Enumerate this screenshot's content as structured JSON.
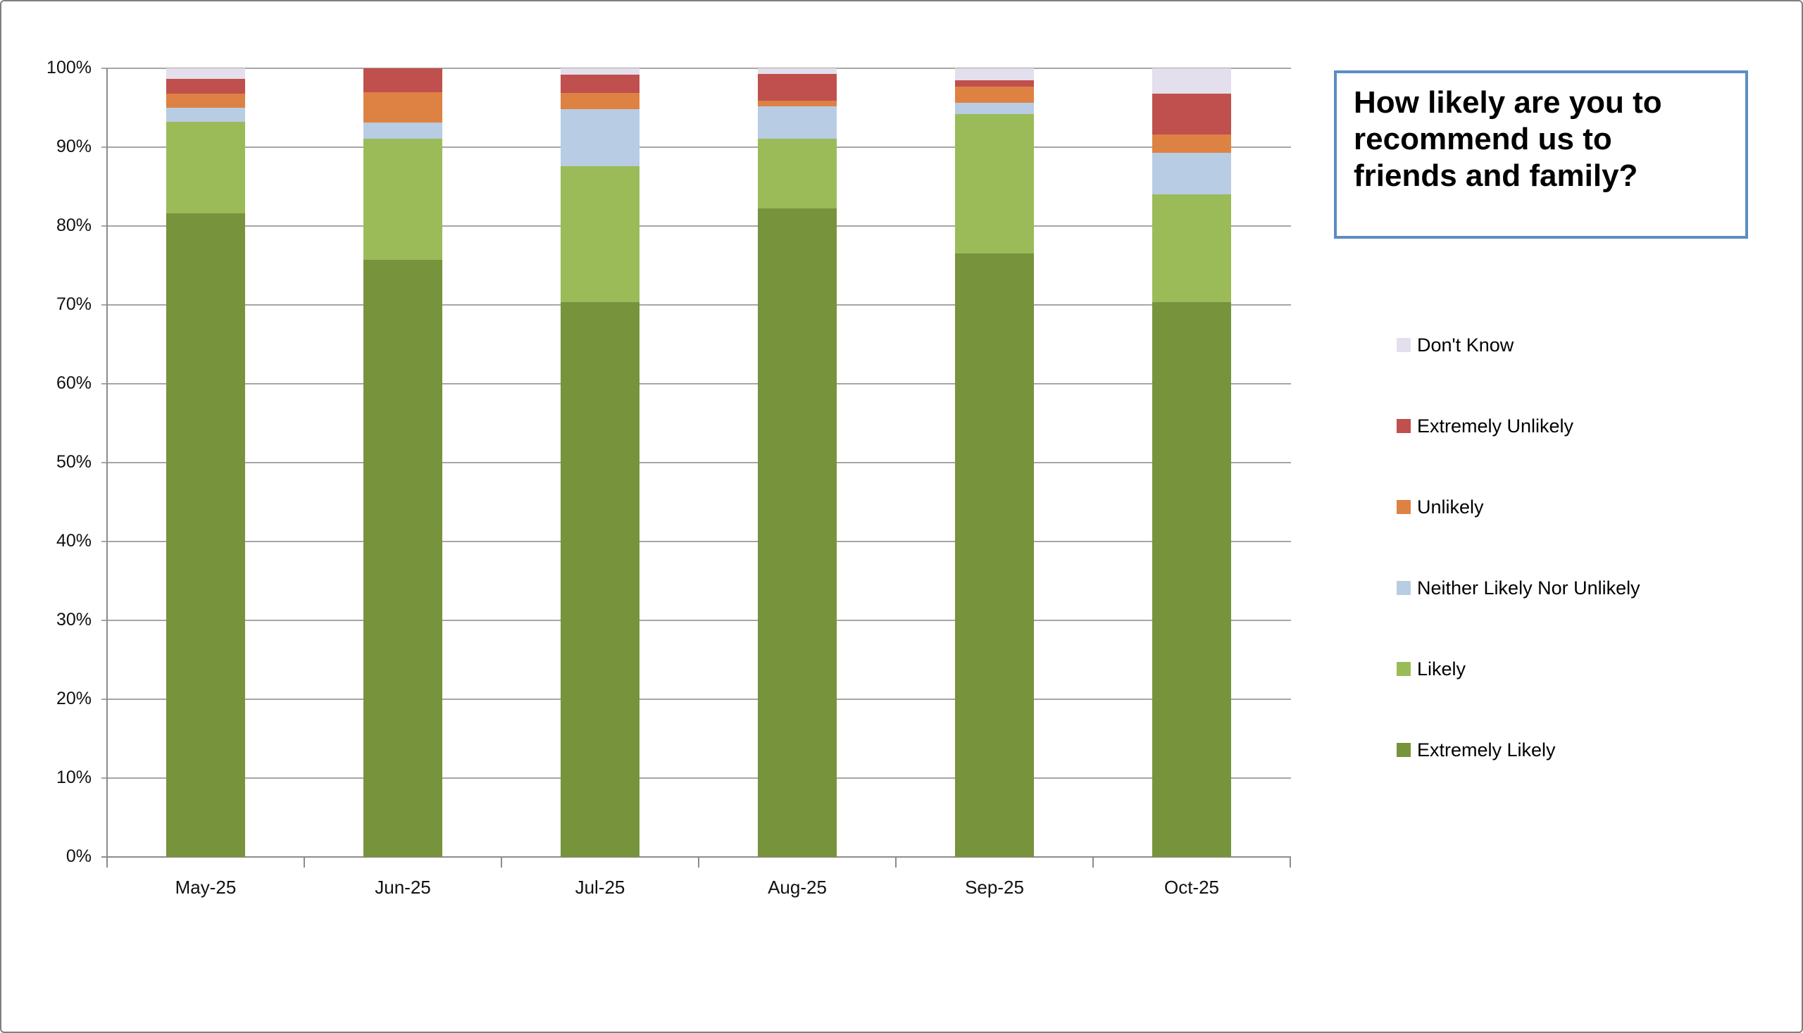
{
  "title_box": {
    "text": "How likely are you to recommend us to friends and family?",
    "border_color": "#5B8DC4"
  },
  "y_axis": {
    "tick_labels": [
      "0%",
      "10%",
      "20%",
      "30%",
      "40%",
      "50%",
      "60%",
      "70%",
      "80%",
      "90%",
      "100%"
    ]
  },
  "x_axis": {
    "tick_labels": [
      "May-25",
      "Jun-25",
      "Jul-25",
      "Aug-25",
      "Sep-25",
      "Oct-25"
    ]
  },
  "legend": {
    "items": [
      {
        "label": "Don't Know",
        "color": "#E4DFEC"
      },
      {
        "label": "Extremely Unlikely",
        "color": "#C0504D"
      },
      {
        "label": "Unlikely",
        "color": "#DE8244"
      },
      {
        "label": "Neither Likely Nor Unlikely",
        "color": "#B8CCE4"
      },
      {
        "label": "Likely",
        "color": "#9BBB59"
      },
      {
        "label": "Extremely Likely",
        "color": "#77933C"
      }
    ]
  },
  "colors": {
    "gridline": "#A6A6A6",
    "axis_line": "#8C8C8C",
    "canvas_border": "#7F7F7F",
    "title_border": "#5B8DC4"
  },
  "chart_data": {
    "type": "bar",
    "subtype": "stacked-100-percent",
    "title": "How likely are you to recommend us to friends and family?",
    "xlabel": "",
    "ylabel": "",
    "ylim": [
      0,
      100
    ],
    "ytick_step": 10,
    "grid": true,
    "legend_position": "right",
    "categories": [
      "May-25",
      "Jun-25",
      "Jul-25",
      "Aug-25",
      "Sep-25",
      "Oct-25"
    ],
    "series": [
      {
        "name": "Extremely Likely",
        "color": "#77933C",
        "values": [
          81.6,
          75.7,
          70.4,
          82.2,
          76.5,
          70.4
        ]
      },
      {
        "name": "Likely",
        "color": "#9BBB59",
        "values": [
          11.6,
          15.4,
          17.2,
          8.9,
          17.7,
          13.6
        ]
      },
      {
        "name": "Neither Likely Nor Unlikely",
        "color": "#B8CCE4",
        "values": [
          1.8,
          2.0,
          7.2,
          4.1,
          1.4,
          5.3
        ]
      },
      {
        "name": "Unlikely",
        "color": "#DE8244",
        "values": [
          1.8,
          3.9,
          2.1,
          0.7,
          2.1,
          2.3
        ]
      },
      {
        "name": "Extremely Unlikely",
        "color": "#C0504D",
        "values": [
          1.9,
          3.0,
          2.3,
          3.4,
          0.8,
          5.2
        ]
      },
      {
        "name": "Don't Know",
        "color": "#E4DFEC",
        "values": [
          1.3,
          0.0,
          0.8,
          0.7,
          1.5,
          3.2
        ]
      }
    ]
  }
}
